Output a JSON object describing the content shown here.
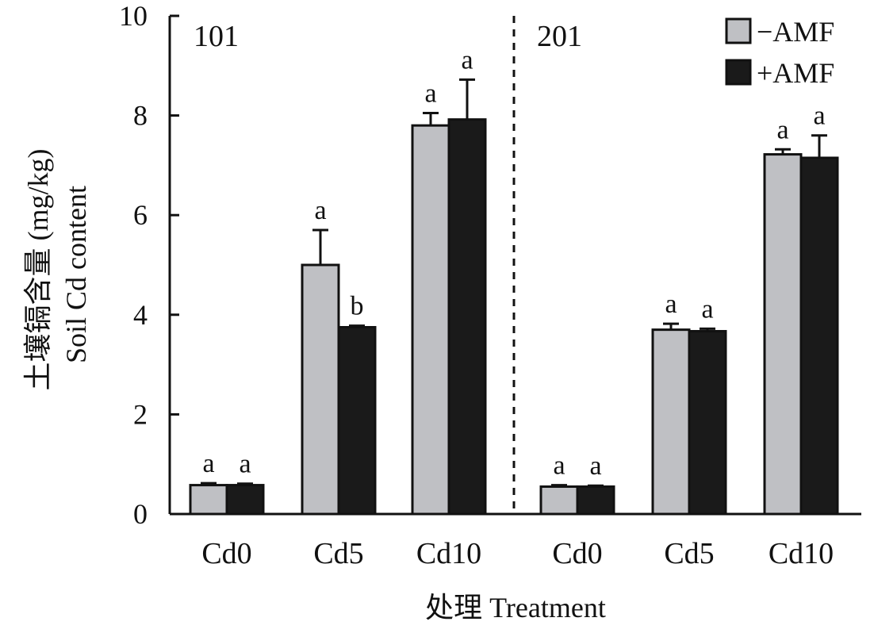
{
  "chart_data": {
    "type": "bar",
    "ylabel_cn": "土壤镉含量 (mg/kg)",
    "ylabel_en": "Soil Cd content",
    "xlabel": "处理 Treatment",
    "ylim": [
      0,
      10
    ],
    "yticks": [
      "0",
      "2",
      "4",
      "6",
      "8",
      "10"
    ],
    "groups": [
      {
        "name": "101",
        "categories": [
          "Cd0",
          "Cd5",
          "Cd10"
        ],
        "series": [
          {
            "name": "−AMF",
            "color": "#bfc0c4",
            "values": [
              0.58,
              5.0,
              7.8
            ],
            "errors": [
              0.04,
              0.7,
              0.25
            ],
            "letters": [
              "a",
              "a",
              "a"
            ]
          },
          {
            "name": "+AMF",
            "color": "#1a1a1a",
            "values": [
              0.58,
              3.75,
              7.92
            ],
            "errors": [
              0.03,
              0.03,
              0.8
            ],
            "letters": [
              "a",
              "b",
              "a"
            ]
          }
        ]
      },
      {
        "name": "201",
        "categories": [
          "Cd0",
          "Cd5",
          "Cd10"
        ],
        "series": [
          {
            "name": "−AMF",
            "color": "#bfc0c4",
            "values": [
              0.55,
              3.7,
              7.22
            ],
            "errors": [
              0.03,
              0.12,
              0.1
            ],
            "letters": [
              "a",
              "a",
              "a"
            ]
          },
          {
            "name": "+AMF",
            "color": "#1a1a1a",
            "values": [
              0.55,
              3.67,
              7.15
            ],
            "errors": [
              0.02,
              0.05,
              0.45
            ],
            "letters": [
              "a",
              "a",
              "a"
            ]
          }
        ]
      }
    ],
    "legend": [
      {
        "label": "−AMF",
        "color": "#bfc0c4"
      },
      {
        "label": "+AMF",
        "color": "#1a1a1a"
      }
    ],
    "legend_position": "top-right",
    "grid": false,
    "group_separator": "dashed"
  }
}
